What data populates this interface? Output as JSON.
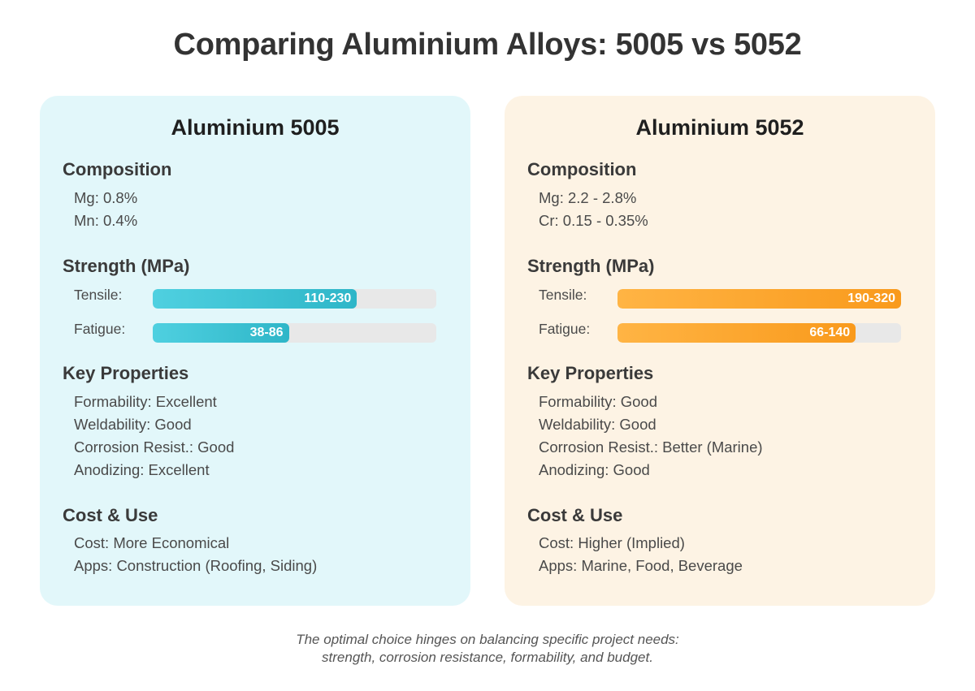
{
  "title": "Comparing Aluminium Alloys: 5005 vs 5052",
  "cards": [
    {
      "name": "Aluminium 5005",
      "bg_color": "#e2f7fa",
      "accent_from": "#4fd0e0",
      "accent_to": "#2eb6c8",
      "composition_heading": "Composition",
      "composition": [
        "Mg: 0.8%",
        "Mn: 0.4%"
      ],
      "strength_heading": "Strength (MPa)",
      "strength": [
        {
          "label": "Tensile:",
          "value": "110-230",
          "fraction": 0.72
        },
        {
          "label": "Fatigue:",
          "value": "38-86",
          "fraction": 0.48
        }
      ],
      "properties_heading": "Key Properties",
      "properties": [
        "Formability: Excellent",
        "Weldability: Good",
        "Corrosion Resist.: Good",
        "Anodizing: Excellent"
      ],
      "cost_heading": "Cost & Use",
      "cost": [
        "Cost: More Economical",
        "Apps: Construction (Roofing, Siding)"
      ]
    },
    {
      "name": "Aluminium 5052",
      "bg_color": "#fdf3e4",
      "accent_from": "#ffb444",
      "accent_to": "#f99a1c",
      "composition_heading": "Composition",
      "composition": [
        "Mg: 2.2 - 2.8%",
        "Cr: 0.15 - 0.35%"
      ],
      "strength_heading": "Strength (MPa)",
      "strength": [
        {
          "label": "Tensile:",
          "value": "190-320",
          "fraction": 1.0
        },
        {
          "label": "Fatigue:",
          "value": "66-140",
          "fraction": 0.84
        }
      ],
      "properties_heading": "Key Properties",
      "properties": [
        "Formability: Good",
        "Weldability: Good",
        "Corrosion Resist.: Better (Marine)",
        "Anodizing: Good"
      ],
      "cost_heading": "Cost & Use",
      "cost": [
        "Cost: Higher (Implied)",
        "Apps: Marine, Food, Beverage"
      ]
    }
  ],
  "footer": [
    "The optimal choice hinges on balancing specific project needs:",
    "strength, corrosion resistance, formability, and budget."
  ]
}
